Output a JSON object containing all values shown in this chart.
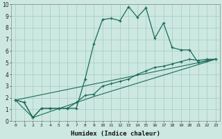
{
  "xlabel": "Humidex (Indice chaleur)",
  "ylabel": "",
  "xlim": [
    -0.5,
    23.5
  ],
  "ylim": [
    0,
    10
  ],
  "xticks": [
    0,
    1,
    2,
    3,
    4,
    5,
    6,
    7,
    8,
    9,
    10,
    11,
    12,
    13,
    14,
    15,
    16,
    17,
    18,
    19,
    20,
    21,
    22,
    23
  ],
  "yticks": [
    0,
    1,
    2,
    3,
    4,
    5,
    6,
    7,
    8,
    9,
    10
  ],
  "background_color": "#cce8e0",
  "grid_color": "#aacfc8",
  "line_color": "#1a6b5a",
  "line1_x": [
    0,
    1,
    2,
    3,
    4,
    5,
    6,
    7,
    8,
    9,
    10,
    11,
    12,
    13,
    14,
    15,
    16,
    17,
    18,
    19,
    20,
    21,
    22,
    23
  ],
  "line1_y": [
    1.8,
    1.6,
    0.3,
    1.1,
    1.1,
    1.1,
    1.1,
    1.1,
    3.6,
    6.6,
    8.7,
    8.8,
    8.6,
    9.8,
    8.9,
    9.7,
    7.1,
    8.4,
    6.3,
    6.1,
    6.1,
    5.0,
    5.2,
    5.3
  ],
  "line2_x": [
    0,
    1,
    2,
    3,
    4,
    5,
    6,
    7,
    8,
    9,
    10,
    11,
    12,
    13,
    14,
    15,
    16,
    17,
    18,
    19,
    20,
    21,
    22,
    23
  ],
  "line2_y": [
    1.8,
    1.6,
    0.3,
    1.1,
    1.1,
    1.1,
    1.1,
    1.6,
    2.2,
    2.3,
    3.0,
    3.2,
    3.4,
    3.6,
    4.0,
    4.3,
    4.6,
    4.7,
    4.9,
    5.1,
    5.3,
    5.2,
    5.3,
    5.3
  ],
  "line3_x": [
    0,
    2,
    9,
    23
  ],
  "line3_y": [
    1.8,
    0.3,
    2.1,
    5.3
  ],
  "line4_x": [
    0,
    23
  ],
  "line4_y": [
    1.8,
    5.3
  ]
}
